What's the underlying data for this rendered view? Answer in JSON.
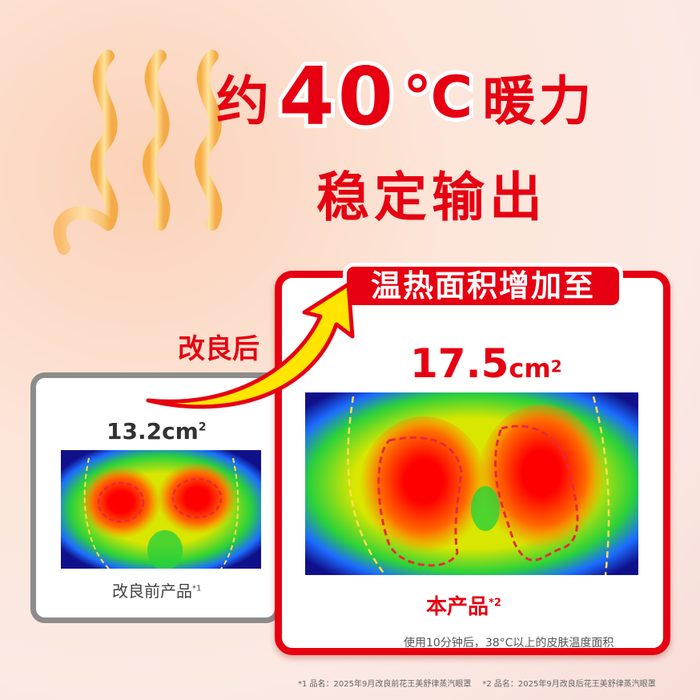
{
  "headline": {
    "prefix": "约",
    "temperature": "40",
    "unit": "℃",
    "suffix": "暖力",
    "line2": "稳定输出"
  },
  "after_label": "改良后",
  "before": {
    "area_value": "13.2cm",
    "area_sup": "2",
    "product_label": "改良前产品",
    "note_ref": "*1"
  },
  "after": {
    "banner": "温热面积增加至",
    "area_value": "17.5",
    "area_unit": "cm",
    "area_sup": "2",
    "product_label": "本产品",
    "note_ref": "*2",
    "caption": "使用10分钟后，38°C以上的皮肤温度面积"
  },
  "footnotes": [
    "*1 品名：2025年9月改良前花王美舒律蒸汽眼罩",
    "*2 品名：2025年9月改良后花王美舒律蒸汽眼罩"
  ],
  "colors": {
    "accent": "#e60012",
    "arrow": "#ffe500",
    "heat_wave": "#f5b73a"
  }
}
